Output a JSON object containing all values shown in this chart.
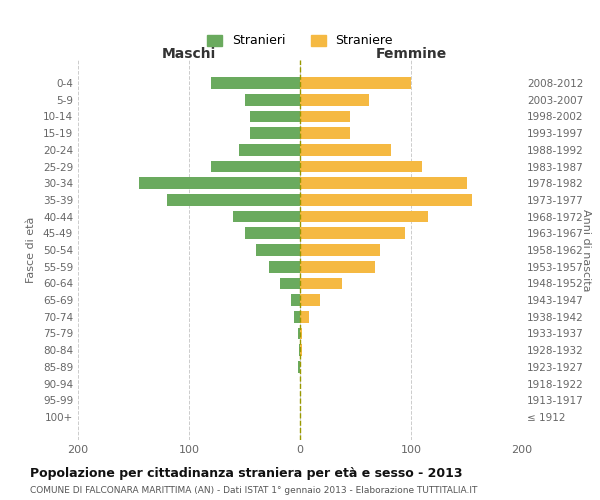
{
  "age_groups": [
    "100+",
    "95-99",
    "90-94",
    "85-89",
    "80-84",
    "75-79",
    "70-74",
    "65-69",
    "60-64",
    "55-59",
    "50-54",
    "45-49",
    "40-44",
    "35-39",
    "30-34",
    "25-29",
    "20-24",
    "15-19",
    "10-14",
    "5-9",
    "0-4"
  ],
  "birth_years": [
    "≤ 1912",
    "1913-1917",
    "1918-1922",
    "1923-1927",
    "1928-1932",
    "1933-1937",
    "1938-1942",
    "1943-1947",
    "1948-1952",
    "1953-1957",
    "1958-1962",
    "1963-1967",
    "1968-1972",
    "1973-1977",
    "1978-1982",
    "1983-1987",
    "1988-1992",
    "1993-1997",
    "1998-2002",
    "2003-2007",
    "2008-2012"
  ],
  "maschi": [
    0,
    0,
    0,
    2,
    1,
    2,
    5,
    8,
    18,
    28,
    40,
    50,
    60,
    120,
    145,
    80,
    55,
    45,
    45,
    50,
    80
  ],
  "femmine": [
    0,
    0,
    0,
    0,
    2,
    2,
    8,
    18,
    38,
    68,
    72,
    95,
    115,
    155,
    150,
    110,
    82,
    45,
    45,
    62,
    100
  ],
  "maschi_color": "#6aaa5e",
  "femmine_color": "#f5b942",
  "background_color": "#ffffff",
  "grid_color": "#cccccc",
  "title": "Popolazione per cittadinanza straniera per età e sesso - 2013",
  "subtitle": "COMUNE DI FALCONARA MARITTIMA (AN) - Dati ISTAT 1° gennaio 2013 - Elaborazione TUTTITALIA.IT",
  "xlabel_left": "Maschi",
  "xlabel_right": "Femmine",
  "ylabel_left": "Fasce di età",
  "ylabel_right": "Anni di nascita",
  "legend_stranieri": "Stranieri",
  "legend_straniere": "Straniere",
  "xlim": 200
}
